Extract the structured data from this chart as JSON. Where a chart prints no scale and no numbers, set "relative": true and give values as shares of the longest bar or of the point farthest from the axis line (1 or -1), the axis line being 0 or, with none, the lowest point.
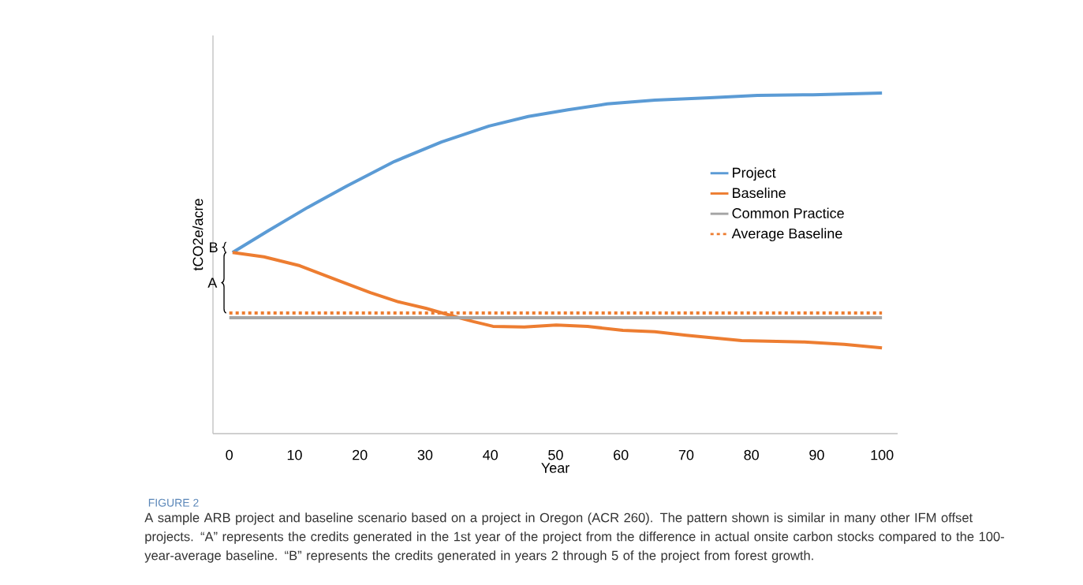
{
  "chart_data": {
    "type": "line",
    "title": "FIGURE 2",
    "xlabel": "Year",
    "ylabel": "tCO2e/acre",
    "relative": true,
    "xlim": [
      -2.5,
      102.4
    ],
    "xticks": [
      0,
      10,
      20,
      30,
      40,
      50,
      60,
      70,
      80,
      90,
      100
    ],
    "series": [
      {
        "name": "Project",
        "color": "#5b9bd5",
        "x": [
          0.5,
          5.9,
          12,
          18,
          25.3,
          32.5,
          39.8,
          45.8,
          51.9,
          57.9,
          65.2,
          73.6,
          80.9,
          89.4,
          100
        ],
        "values": [
          0.532,
          0.595,
          0.664,
          0.727,
          0.799,
          0.856,
          0.903,
          0.931,
          0.951,
          0.968,
          0.979,
          0.986,
          0.993,
          0.995,
          1
        ]
      },
      {
        "name": "Baseline",
        "color": "#ed7d31",
        "x": [
          0.5,
          5.3,
          10.8,
          16.8,
          21.6,
          25.9,
          30.1,
          34.3,
          37.4,
          40.4,
          45.2,
          50.1,
          54.9,
          60.3,
          65.2,
          70,
          78.5,
          88.1,
          94.2,
          100
        ],
        "values": [
          0.532,
          0.519,
          0.493,
          0.449,
          0.414,
          0.387,
          0.368,
          0.345,
          0.329,
          0.315,
          0.313,
          0.319,
          0.315,
          0.303,
          0.299,
          0.289,
          0.273,
          0.269,
          0.262,
          0.252
        ]
      },
      {
        "name": "Common Practice",
        "color": "#a5a5a5",
        "x": [
          0,
          100
        ],
        "values": [
          0.34,
          0.34
        ]
      },
      {
        "name": "Average Baseline",
        "color": "#ed7d31",
        "line_style": "dashed",
        "x": [
          0,
          100
        ],
        "values": [
          0.354,
          0.354
        ]
      }
    ],
    "legend": "right",
    "annotations": [
      "A",
      "B",
      "A sample ARB project and baseline scenario based on a project in Oregon (ACR 260). The pattern shown is similar in many other IFM offset projects. “A” represents the credits generated in the 1st year of the project from the difference in actual onsite carbon stocks compared to the 100-year-average baseline. “B” represents the credits generated in years 2 through 5 of the project from forest growth."
    ]
  }
}
